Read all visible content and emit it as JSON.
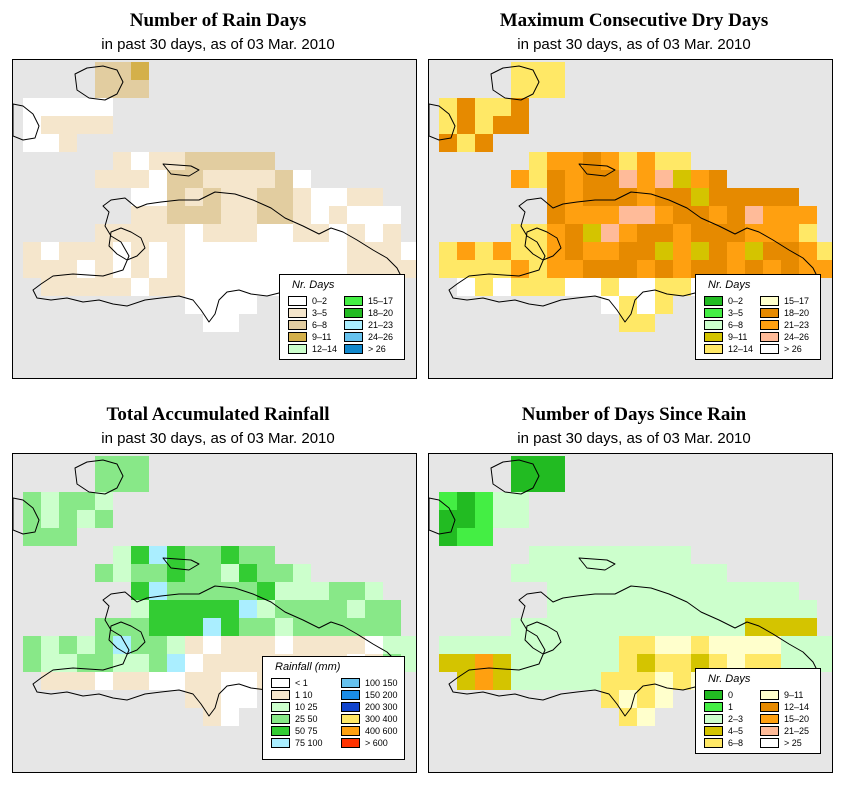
{
  "panels": [
    {
      "id": "rain-days",
      "title": "Number of Rain Days",
      "subtitle": "in past 30 days, as of  03 Mar. 2010",
      "legend": {
        "title": "Nr. Days",
        "items": [
          {
            "label": "0–2",
            "color": "#ffffff"
          },
          {
            "label": "3–5",
            "color": "#f5e6cc"
          },
          {
            "label": "6–8",
            "color": "#e2cda0"
          },
          {
            "label": "9–11",
            "color": "#d4b04a"
          },
          {
            "label": "12–14",
            "color": "#ccffcc"
          },
          {
            "label": "15–17",
            "color": "#44ee44"
          },
          {
            "label": "18–20",
            "color": "#22bb22"
          },
          {
            "label": "21–23",
            "color": "#aaeeff"
          },
          {
            "label": "24–26",
            "color": "#66c2ee"
          },
          {
            "label": "> 26",
            "color": "#1188cc"
          }
        ]
      }
    },
    {
      "id": "dry-days",
      "title": "Maximum Consecutive Dry Days",
      "subtitle": "in past 30 days, as of  03 Mar. 2010",
      "legend": {
        "title": "Nr. Days",
        "items": [
          {
            "label": "0–2",
            "color": "#22bb22"
          },
          {
            "label": "3–5",
            "color": "#44ee44"
          },
          {
            "label": "6–8",
            "color": "#ccffcc"
          },
          {
            "label": "9–11",
            "color": "#d4c400"
          },
          {
            "label": "12–14",
            "color": "#ffe866"
          },
          {
            "label": "15–17",
            "color": "#ffffcc"
          },
          {
            "label": "18–20",
            "color": "#e68a00"
          },
          {
            "label": "21–23",
            "color": "#ffa010"
          },
          {
            "label": "24–26",
            "color": "#ffbb99"
          },
          {
            "label": "> 26",
            "color": "#ffffff"
          }
        ]
      }
    },
    {
      "id": "rainfall",
      "title": "Total Accumulated Rainfall",
      "subtitle": "in past 30 days, as of  03 Mar. 2010",
      "legend": {
        "title": "Rainfall (mm)",
        "items": [
          {
            "label": "< 1",
            "color": "#ffffff"
          },
          {
            "label": "1   10",
            "color": "#f5e6cc"
          },
          {
            "label": "10   25",
            "color": "#ccffcc"
          },
          {
            "label": "25   50",
            "color": "#88e888"
          },
          {
            "label": "50   75",
            "color": "#33cc33"
          },
          {
            "label": "75   100",
            "color": "#aaeeff"
          },
          {
            "label": "100   150",
            "color": "#66c2ee"
          },
          {
            "label": "150   200",
            "color": "#1a8ce6"
          },
          {
            "label": "200   300",
            "color": "#1144cc"
          },
          {
            "label": "300   400",
            "color": "#ffe866"
          },
          {
            "label": "400   600",
            "color": "#ffa010"
          },
          {
            "label": "> 600",
            "color": "#ff3300"
          }
        ]
      }
    },
    {
      "id": "since-rain",
      "title": "Number of Days Since Rain",
      "subtitle": "in past 30 days, as of  03 Mar. 2010",
      "legend": {
        "title": "Nr. Days",
        "items": [
          {
            "label": "0",
            "color": "#22bb22"
          },
          {
            "label": "1",
            "color": "#44ee44"
          },
          {
            "label": "2–3",
            "color": "#ccffcc"
          },
          {
            "label": "4–5",
            "color": "#d4c400"
          },
          {
            "label": "6–8",
            "color": "#ffe866"
          },
          {
            "label": "9–11",
            "color": "#ffffcc"
          },
          {
            "label": "12–14",
            "color": "#e68a00"
          },
          {
            "label": "15–20",
            "color": "#ffa010"
          },
          {
            "label": "21–25",
            "color": "#ffbb99"
          },
          {
            "label": "> 25",
            "color": "#ffffff"
          }
        ]
      }
    }
  ]
}
